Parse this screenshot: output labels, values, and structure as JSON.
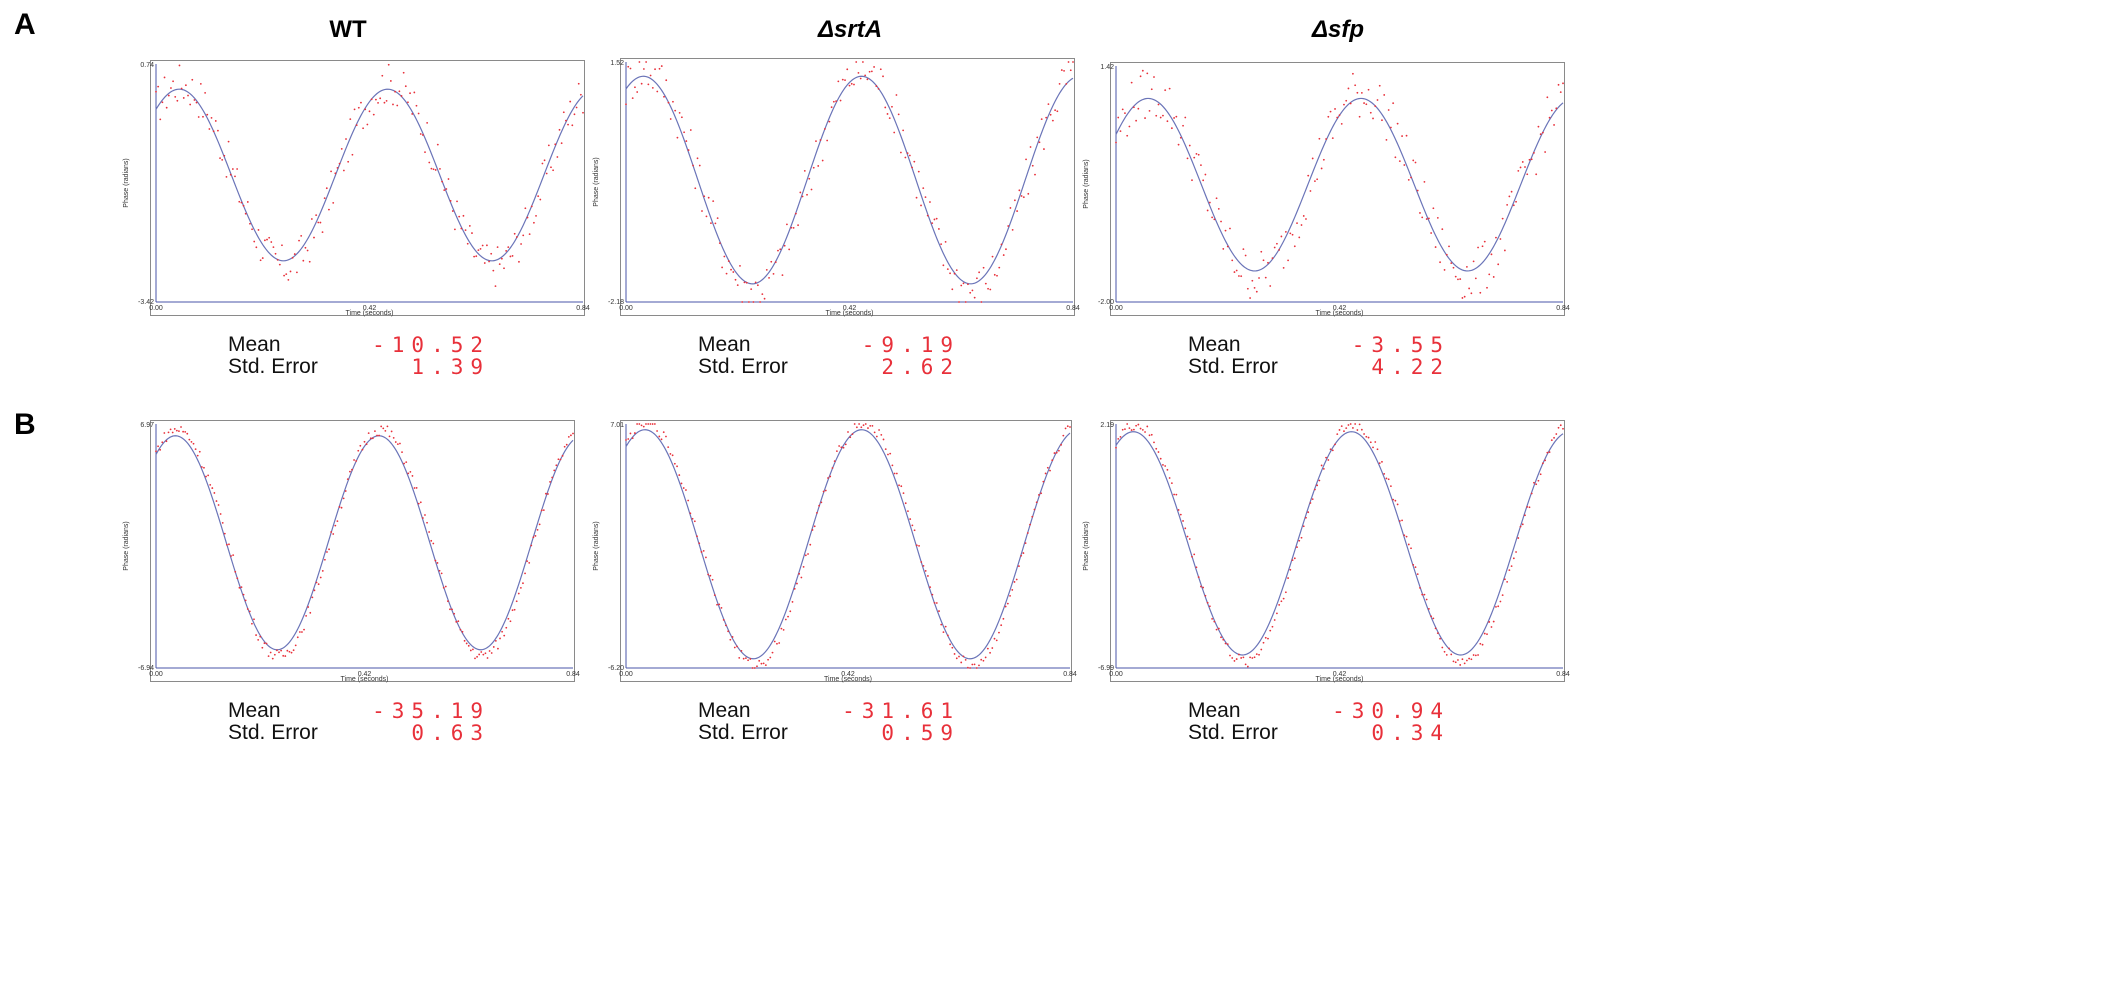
{
  "row_labels": [
    "A",
    "B"
  ],
  "column_titles": [
    "WT",
    "ΔsrtA",
    "Δsfp"
  ],
  "stat_labels": {
    "mean": "Mean",
    "std_error": "Std. Error"
  },
  "colors": {
    "fit_line": "#6a74b8",
    "data_points": "#e8303a",
    "stat_value": "#e8303a",
    "axis": "#4a55a8"
  },
  "chart_data": [
    {
      "type": "scatter",
      "row": "A",
      "column": "WT",
      "xlabel": "Time (seconds)",
      "ylabel": "Phase (radians)",
      "xlim": [
        0,
        0.84
      ],
      "ylim": [
        -3.42,
        0.74
      ],
      "x_ticks": [
        "0.00",
        "0.42",
        "0.84"
      ],
      "y_ticks": [
        "0.74",
        "-3.42"
      ],
      "fit": {
        "amplitude": 1.5,
        "period": 0.41,
        "phase": 0.7,
        "offset": -1.2
      },
      "noise": 0.18,
      "mean": "-10.52",
      "std_error": "1.39"
    },
    {
      "type": "scatter",
      "row": "A",
      "column": "ΔsrtA",
      "xlabel": "Time (seconds)",
      "ylabel": "Phase (radians)",
      "xlim": [
        0,
        0.84
      ],
      "ylim": [
        -2.18,
        1.52
      ],
      "x_ticks": [
        "0.00",
        "0.42",
        "0.84"
      ],
      "y_ticks": [
        "1.52",
        "-2.18"
      ],
      "fit": {
        "amplitude": 1.6,
        "period": 0.41,
        "phase": 0.5,
        "offset": -0.3
      },
      "noise": 0.2,
      "mean": "-9.19",
      "std_error": "2.62"
    },
    {
      "type": "scatter",
      "row": "A",
      "column": "Δsfp",
      "xlabel": "Time (seconds)",
      "ylabel": "Phase (radians)",
      "xlim": [
        0,
        0.84
      ],
      "ylim": [
        -2.0,
        1.42
      ],
      "x_ticks": [
        "0.00",
        "0.42",
        "0.84"
      ],
      "y_ticks": [
        "1.42",
        "-2.00"
      ],
      "fit": {
        "amplitude": 1.25,
        "period": 0.4,
        "phase": 0.95,
        "offset": -0.3
      },
      "noise": 0.22,
      "mean": "-3.55",
      "std_error": "4.22"
    },
    {
      "type": "scatter",
      "row": "B",
      "column": "WT",
      "xlabel": "Time (seconds)",
      "ylabel": "Phase (radians)",
      "xlim": [
        0,
        0.84
      ],
      "ylim": [
        -6.94,
        6.97
      ],
      "x_ticks": [
        "0.00",
        "0.42",
        "0.84"
      ],
      "y_ticks": [
        "6.97",
        "-6.94"
      ],
      "fit": {
        "amplitude": 6.1,
        "period": 0.41,
        "phase": 0.6,
        "offset": 0.2
      },
      "noise": 0.05,
      "mean": "-35.19",
      "std_error": "0.63"
    },
    {
      "type": "scatter",
      "row": "B",
      "column": "ΔsrtA",
      "xlabel": "Time (seconds)",
      "ylabel": "Phase (radians)",
      "xlim": [
        0,
        0.84
      ],
      "ylim": [
        -6.2,
        7.01
      ],
      "x_ticks": [
        "0.00",
        "0.42",
        "0.84"
      ],
      "y_ticks": [
        "7.01",
        "-6.20"
      ],
      "fit": {
        "amplitude": 6.2,
        "period": 0.41,
        "phase": 0.55,
        "offset": 0.5
      },
      "noise": 0.05,
      "mean": "-31.61",
      "std_error": "0.59"
    },
    {
      "type": "scatter",
      "row": "B",
      "column": "Δsfp",
      "xlabel": "Time (seconds)",
      "ylabel": "Phase (radians)",
      "xlim": [
        0,
        0.84
      ],
      "ylim": [
        -6.99,
        2.19
      ],
      "x_ticks": [
        "0.00",
        "0.42",
        "0.84"
      ],
      "y_ticks": [
        "2.19",
        "-6.99"
      ],
      "fit": {
        "amplitude": 4.2,
        "period": 0.41,
        "phase": 0.5,
        "offset": -2.3
      },
      "noise": 0.05,
      "mean": "-30.94",
      "std_error": "0.34"
    }
  ]
}
